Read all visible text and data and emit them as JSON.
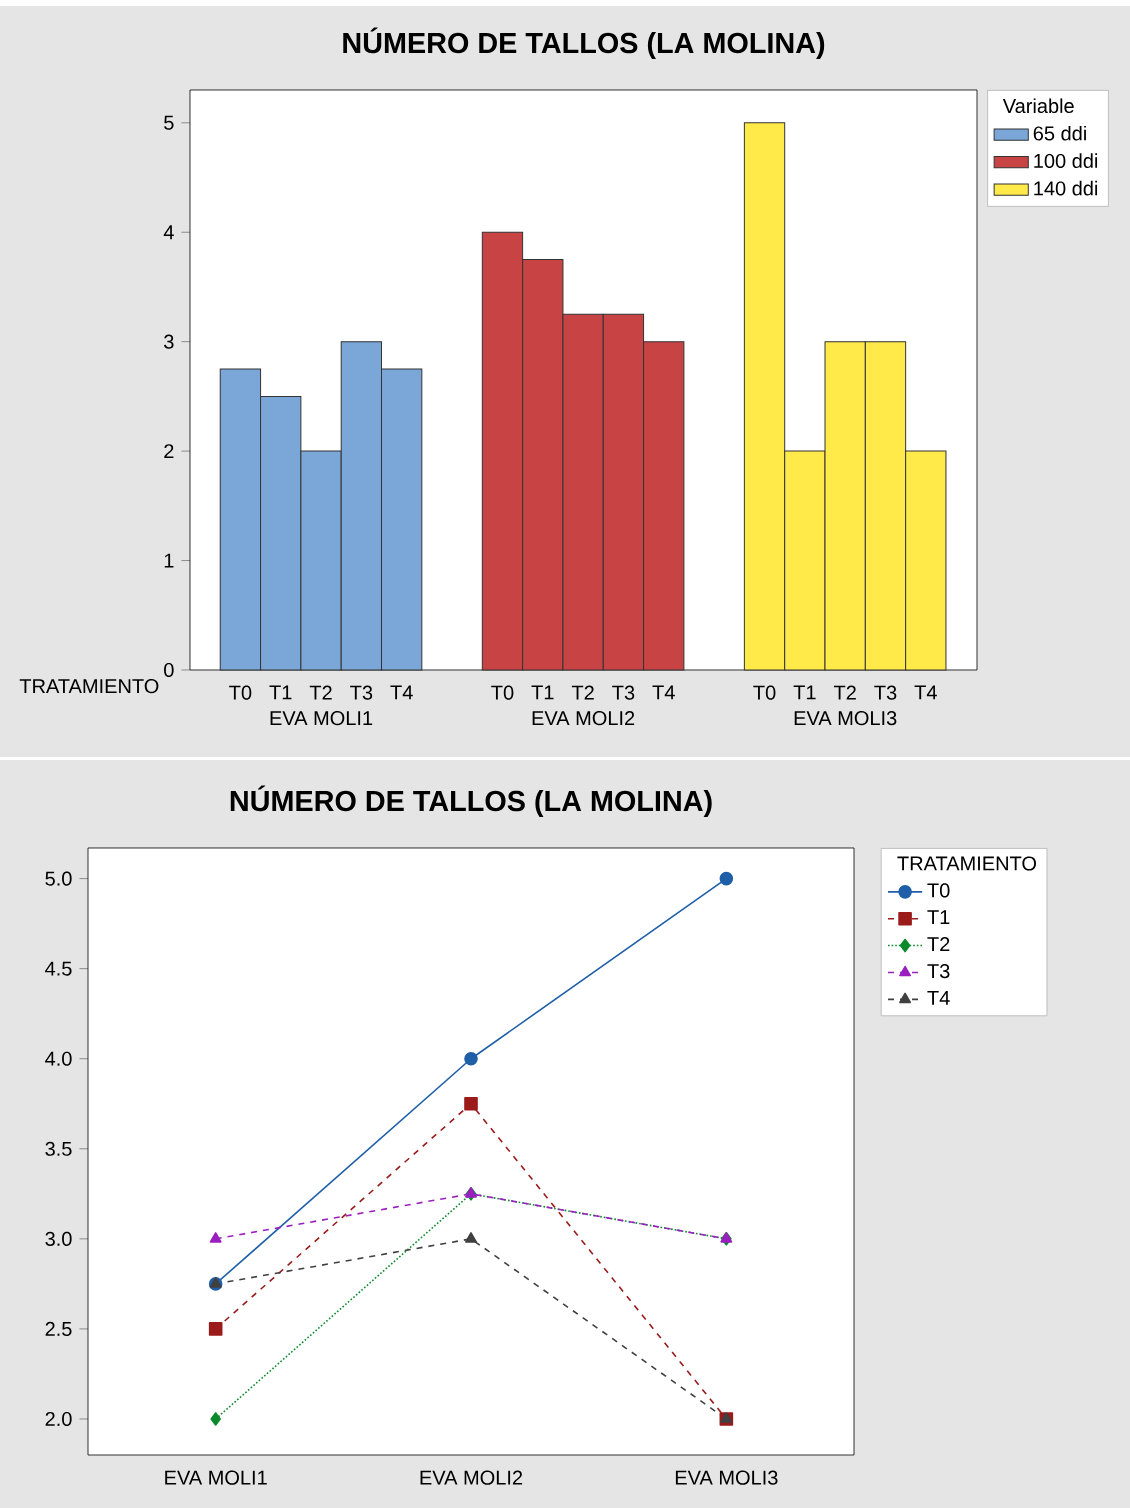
{
  "chart_data": [
    {
      "type": "bar",
      "title": "NÚMERO DE TALLOS (LA MOLINA)",
      "xlabel": "TRATAMIENTO",
      "legend_title": "Variable",
      "legend": "top right",
      "categories": [
        "T0",
        "T1",
        "T2",
        "T3",
        "T4",
        "T0",
        "T1",
        "T2",
        "T3",
        "T4",
        "T0",
        "T1",
        "T2",
        "T3",
        "T4"
      ],
      "series": [
        {
          "name": "65 ddi",
          "color": "#7ba7d8",
          "values": [
            2.75,
            2.5,
            2,
            3,
            2.75,
            null,
            null,
            null,
            null,
            null,
            null,
            null,
            null,
            null,
            null
          ]
        },
        {
          "name": "100 ddi",
          "color": "#c84444",
          "values": [
            null,
            null,
            null,
            null,
            null,
            4,
            3.75,
            3.25,
            3.25,
            3,
            null,
            null,
            null,
            null,
            null
          ]
        },
        {
          "name": "140 ddi",
          "color": "#ffea4a",
          "values": [
            null,
            null,
            null,
            null,
            null,
            null,
            null,
            null,
            null,
            null,
            5,
            2,
            3,
            3,
            2
          ]
        }
      ],
      "annotations": [
        "EVA MOLI1",
        "EVA MOLI2",
        "EVA MOLI3"
      ],
      "ylim": [
        0,
        5.3
      ],
      "yticks": [
        0,
        1,
        2,
        3,
        4,
        5
      ]
    },
    {
      "type": "line",
      "title": "NÚMERO DE TALLOS (LA MOLINA)",
      "legend_title": "TRATAMIENTO",
      "legend": "top right",
      "categories": [
        "EVA MOLI1",
        "EVA MOLI2",
        "EVA MOLI3"
      ],
      "series": [
        {
          "name": "T0",
          "color": "#1f5fa8",
          "marker": "circle",
          "line_style": "solid",
          "values": [
            2.75,
            4,
            5
          ]
        },
        {
          "name": "T1",
          "color": "#9b1b1b",
          "marker": "square",
          "line_style": "dashed",
          "values": [
            2.5,
            3.75,
            2
          ]
        },
        {
          "name": "T2",
          "color": "#0a8a2a",
          "marker": "diamond",
          "line_style": "dotted",
          "values": [
            2,
            3.25,
            3
          ]
        },
        {
          "name": "T3",
          "color": "#9b1fc0",
          "marker": "triangle",
          "line_style": "dashed",
          "values": [
            3,
            3.25,
            3
          ]
        },
        {
          "name": "T4",
          "color": "#404040",
          "marker": "triangle",
          "line_style": "dashed",
          "values": [
            2.75,
            3,
            2
          ]
        }
      ],
      "ylim": [
        1.8,
        5.17
      ],
      "yticks": [
        {
          "value": 2,
          "label": "2.0"
        },
        {
          "value": 2.5,
          "label": "2.5"
        },
        {
          "value": 3,
          "label": "3.0"
        },
        {
          "value": 3.5,
          "label": "3.5"
        },
        {
          "value": 4,
          "label": "4.0"
        },
        {
          "value": 4.5,
          "label": "4.5"
        },
        {
          "value": 5,
          "label": "5.0"
        }
      ]
    }
  ]
}
